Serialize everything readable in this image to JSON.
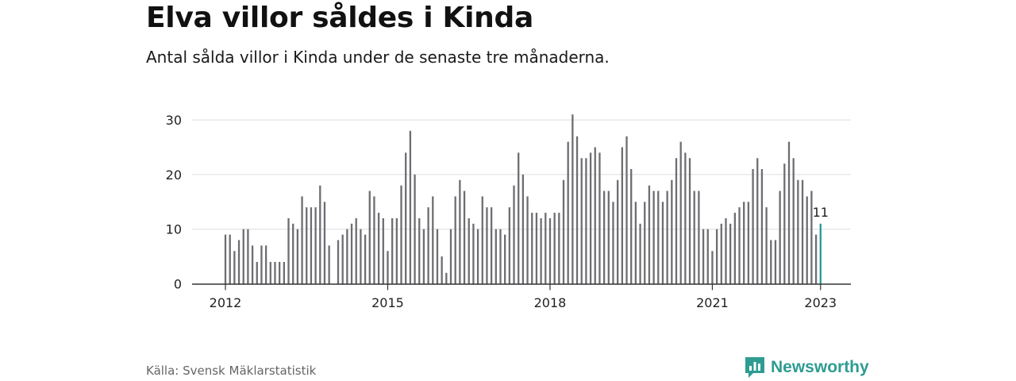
{
  "title": "Elva villor såldes i Kinda",
  "subtitle": "Antal sålda villor i Kinda under de senaste tre månaderna.",
  "source": "Källa: Svensk Mäklarstatistik",
  "brand": {
    "name": "Newsworthy",
    "icon": "newsworthy-logo-icon",
    "color": "#2e9c91"
  },
  "colors": {
    "bar": "#6d6d72",
    "highlight": "#1f9c96",
    "grid": "#dddddd",
    "axis": "#333333"
  },
  "chart_data": {
    "type": "bar",
    "start": "2012-01",
    "x_ticks": [
      "2012",
      "2015",
      "2018",
      "2021",
      "2023"
    ],
    "y_ticks": [
      "0",
      "10",
      "20",
      "30"
    ],
    "ylim": [
      0,
      33
    ],
    "grid": true,
    "last_label": "11",
    "values": [
      9,
      9,
      6,
      8,
      10,
      10,
      7,
      4,
      7,
      7,
      4,
      4,
      4,
      4,
      12,
      11,
      10,
      16,
      14,
      14,
      14,
      18,
      15,
      7,
      null,
      8,
      9,
      10,
      11,
      12,
      10,
      9,
      17,
      16,
      13,
      12,
      6,
      12,
      12,
      18,
      24,
      28,
      20,
      12,
      10,
      14,
      16,
      10,
      5,
      2,
      10,
      16,
      19,
      17,
      12,
      11,
      10,
      16,
      14,
      14,
      10,
      10,
      9,
      14,
      18,
      24,
      20,
      16,
      13,
      13,
      12,
      13,
      12,
      13,
      13,
      19,
      26,
      31,
      27,
      23,
      23,
      24,
      25,
      24,
      17,
      17,
      15,
      19,
      25,
      27,
      21,
      15,
      11,
      15,
      18,
      17,
      17,
      15,
      17,
      19,
      23,
      26,
      24,
      23,
      17,
      17,
      10,
      10,
      6,
      10,
      11,
      12,
      11,
      13,
      14,
      15,
      15,
      21,
      23,
      21,
      14,
      8,
      8,
      17,
      22,
      26,
      23,
      19,
      19,
      16,
      17,
      9,
      11
    ]
  }
}
